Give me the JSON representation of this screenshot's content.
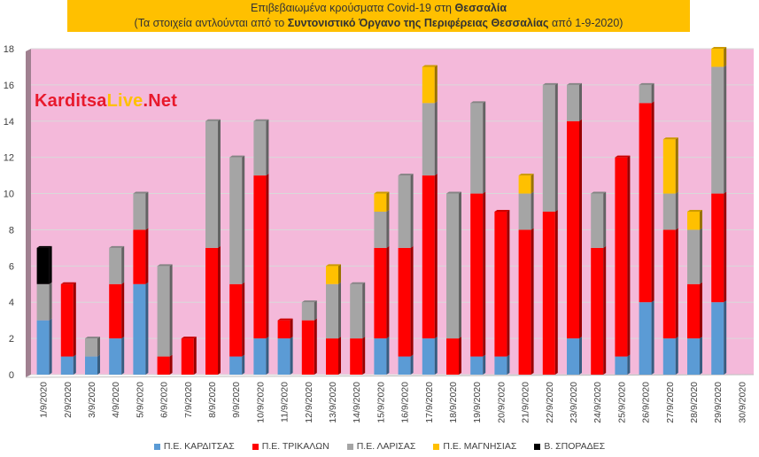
{
  "title": {
    "line1_prefix": "Επιβεβαιωμένα κρούσματα Covid-19 στη ",
    "line1_bold": "Θεσσαλία",
    "line2_prefix": "(Τα στοιχεία αντλούνται από το ",
    "line2_bold": "Συντονιστικό Όργανο της Περιφέρειας Θεσσαλίας",
    "line2_suffix": " από 1-9-2020)"
  },
  "brand": {
    "part1": "Karditsa",
    "part2": "Live",
    "part3": ".Net"
  },
  "colors": {
    "plot_bg": "#f4b9da",
    "wall": "#a08090",
    "grid": "#d9d9d9",
    "title_bg": "#ffc000"
  },
  "chart_data": {
    "type": "bar",
    "stacked": true,
    "categories": [
      "1/9/2020",
      "2/9/2020",
      "3/9/2020",
      "4/9/2020",
      "5/9/2020",
      "6/9/2020",
      "7/9/2020",
      "8/9/2020",
      "9/9/2020",
      "10/9/2020",
      "11/9/2020",
      "12/9/2020",
      "13/9/2020",
      "14/9/2020",
      "15/9/2020",
      "16/9/2020",
      "17/9/2020",
      "18/9/2020",
      "19/9/2020",
      "20/9/2020",
      "21/9/2020",
      "22/9/2020",
      "23/9/2020",
      "24/9/2020",
      "25/9/2020",
      "26/9/2020",
      "27/9/2020",
      "28/9/2020",
      "29/9/2020",
      "30/9/2020"
    ],
    "series": [
      {
        "name": "Π.Ε. ΚΑΡΔΙΤΣΑΣ",
        "color": "#5b9bd5",
        "values": [
          3,
          1,
          1,
          2,
          5,
          0,
          0,
          0,
          1,
          2,
          2,
          0,
          0,
          0,
          2,
          1,
          2,
          0,
          1,
          1,
          0,
          0,
          2,
          0,
          1,
          4,
          2,
          2,
          4,
          0
        ]
      },
      {
        "name": "Π.Ε. ΤΡΙΚΑΛΩΝ",
        "color": "#ff0000",
        "values": [
          0,
          4,
          0,
          3,
          3,
          1,
          2,
          7,
          4,
          9,
          1,
          3,
          2,
          2,
          5,
          6,
          9,
          2,
          9,
          8,
          8,
          9,
          12,
          7,
          11,
          11,
          6,
          3,
          6,
          0
        ]
      },
      {
        "name": "Π.Ε. ΛΑΡΙΣΑΣ",
        "color": "#a5a5a5",
        "values": [
          2,
          0,
          1,
          2,
          2,
          5,
          0,
          7,
          7,
          3,
          0,
          1,
          3,
          3,
          2,
          4,
          4,
          8,
          5,
          0,
          2,
          7,
          2,
          3,
          0,
          1,
          2,
          3,
          7,
          0
        ]
      },
      {
        "name": "Π.Ε. ΜΑΓΝΗΣΙΑΣ",
        "color": "#ffc000",
        "values": [
          0,
          0,
          0,
          0,
          0,
          0,
          0,
          0,
          0,
          0,
          0,
          0,
          1,
          0,
          1,
          0,
          2,
          0,
          0,
          0,
          1,
          0,
          0,
          0,
          0,
          0,
          3,
          1,
          1,
          0
        ]
      },
      {
        "name": "Β. ΣΠΟΡΑΔΕΣ",
        "color": "#000000",
        "values": [
          2,
          0,
          0,
          0,
          0,
          0,
          0,
          0,
          0,
          0,
          0,
          0,
          0,
          0,
          0,
          0,
          0,
          0,
          0,
          0,
          0,
          0,
          0,
          0,
          0,
          0,
          0,
          0,
          0,
          0
        ]
      }
    ],
    "yticks": [
      0,
      2,
      4,
      6,
      8,
      10,
      12,
      14,
      16,
      18
    ],
    "ylim": [
      0,
      18
    ],
    "grid": true,
    "legend": "bottom"
  }
}
